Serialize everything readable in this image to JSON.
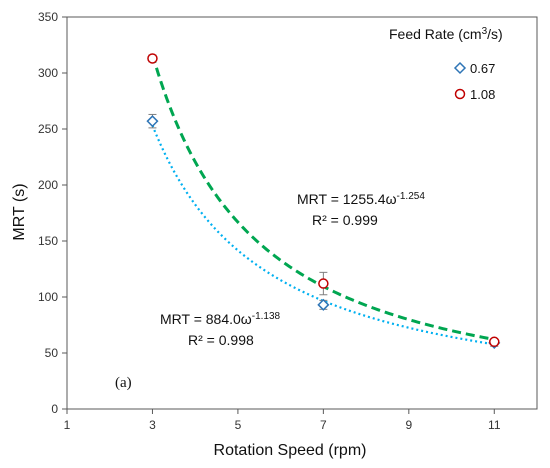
{
  "chart_data": {
    "type": "scatter",
    "xlabel": "Rotation Speed (rpm)",
    "ylabel": "MRT (s)",
    "xlim": [
      1,
      12
    ],
    "ylim": [
      0,
      350
    ],
    "xticks": [
      1,
      3,
      5,
      7,
      9,
      11
    ],
    "yticks": [
      0,
      50,
      100,
      150,
      200,
      250,
      300,
      350
    ],
    "grid": false,
    "legend": {
      "title_main": "Feed Rate (cm",
      "title_sup": "3",
      "title_end": "/s)",
      "placement": "top-right"
    },
    "panel_label": "(a)",
    "series": [
      {
        "name": "0.67",
        "marker": "diamond",
        "marker_color": "#2e75b6",
        "fit_color": "#00b0f0",
        "fit_style": "dotted",
        "fit": {
          "a": 884.0,
          "b": -1.138
        },
        "x": [
          3,
          7,
          11
        ],
        "y": [
          257,
          93,
          59
        ],
        "err": [
          6,
          4,
          3
        ]
      },
      {
        "name": "1.08",
        "marker": "circle",
        "marker_color": "#c00000",
        "fit_color": "#00a651",
        "fit_style": "dashed",
        "fit": {
          "a": 1255.4,
          "b": -1.254
        },
        "x": [
          3,
          7,
          11
        ],
        "y": [
          313,
          112,
          60
        ],
        "err": [
          3,
          10,
          2
        ]
      }
    ],
    "annotations": [
      {
        "series": "1.08",
        "eq_main": "MRT = 1255.4ω",
        "eq_exp": "-1.254",
        "r2": "R² = 0.999"
      },
      {
        "series": "0.67",
        "eq_main": "MRT = 884.0ω",
        "eq_exp": "-1.138",
        "r2": "R² = 0.998"
      }
    ]
  }
}
